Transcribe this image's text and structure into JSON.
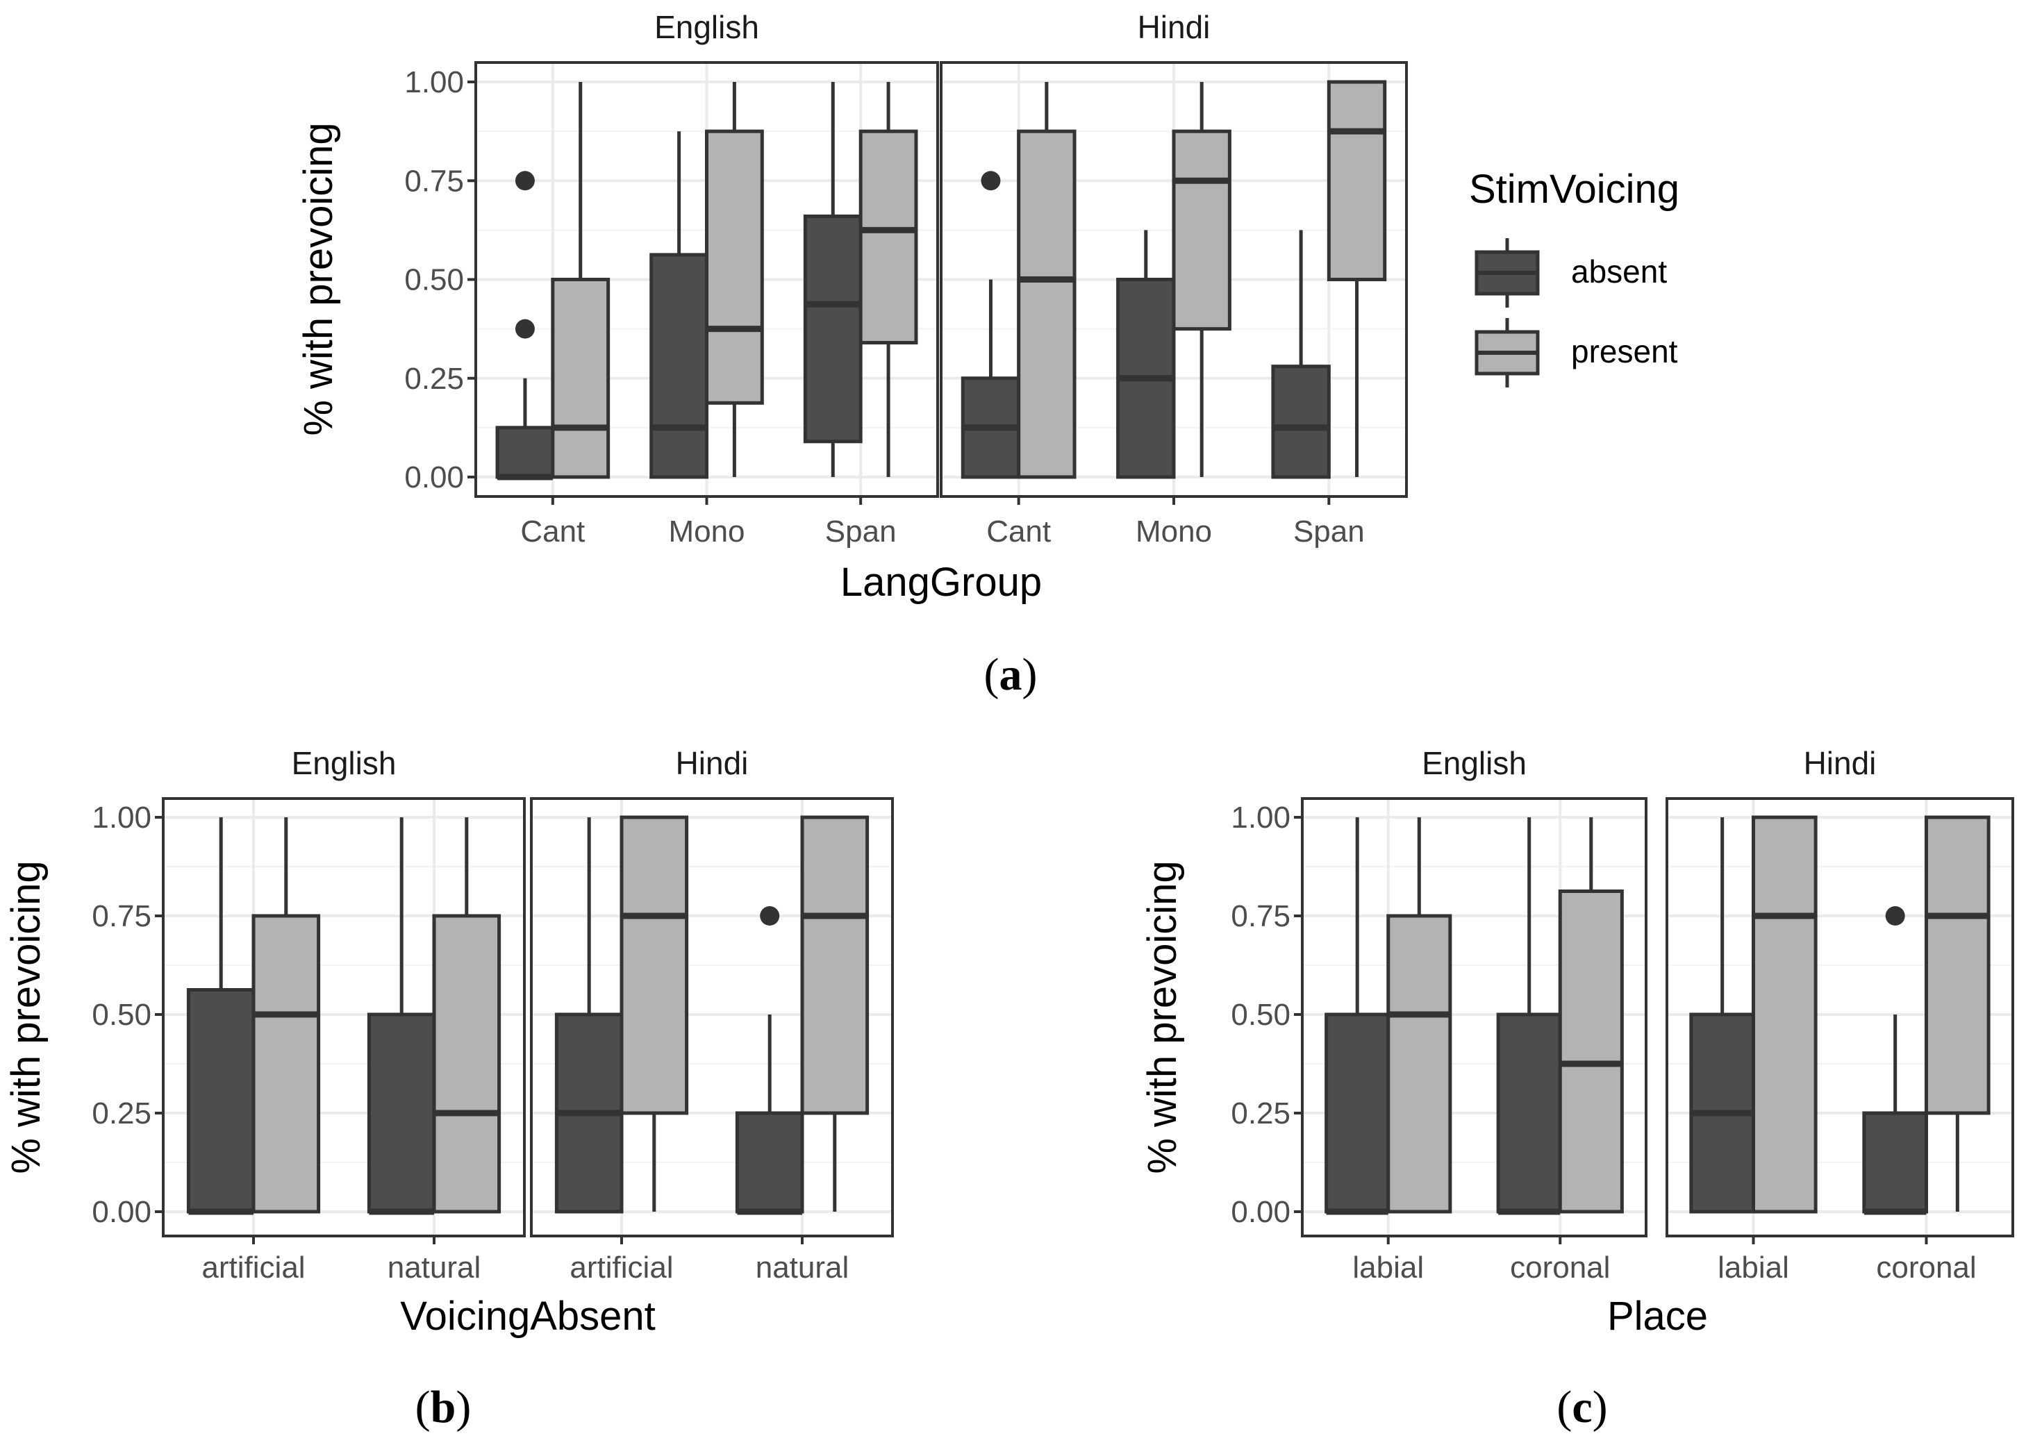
{
  "figure": {
    "captions": [
      "(a)",
      "(b)",
      "(c)"
    ],
    "caption_letters": [
      "a",
      "b",
      "c"
    ]
  },
  "legend": {
    "title": "StimVoicing",
    "entries": [
      {
        "label": "absent",
        "fill": "#4d4d4d"
      },
      {
        "label": "present",
        "fill": "#b3b3b3"
      }
    ]
  },
  "colors": {
    "absent_fill": "#4d4d4d",
    "present_fill": "#b3b3b3",
    "box_stroke": "#333333",
    "panel_border": "#333333",
    "grid_major": "#ebebeb",
    "grid_minor": "#f2f2f2"
  },
  "chart_data": [
    {
      "id": "a",
      "type": "boxplot",
      "caption": "(a)",
      "ylabel": "% with prevoicing",
      "xlabel": "LangGroup",
      "ylim": [
        0,
        1
      ],
      "yticks": [
        "0.00",
        "0.25",
        "0.50",
        "0.75",
        "1.00"
      ],
      "facets": [
        {
          "title": "English",
          "categories": [
            "Cant",
            "Mono",
            "Span"
          ],
          "groups": [
            {
              "category": "Cant",
              "series": "absent",
              "lower_whisker": 0,
              "q1": 0,
              "median": 0,
              "q3": 0.125,
              "upper_whisker": 0.25,
              "outliers": [
                0.375,
                0.75
              ]
            },
            {
              "category": "Cant",
              "series": "present",
              "lower_whisker": 0,
              "q1": 0,
              "median": 0.125,
              "q3": 0.5,
              "upper_whisker": 1.0,
              "outliers": []
            },
            {
              "category": "Mono",
              "series": "absent",
              "lower_whisker": 0,
              "q1": 0,
              "median": 0.125,
              "q3": 0.5625,
              "upper_whisker": 0.875,
              "outliers": []
            },
            {
              "category": "Mono",
              "series": "present",
              "lower_whisker": 0,
              "q1": 0.1875,
              "median": 0.375,
              "q3": 0.875,
              "upper_whisker": 1.0,
              "outliers": []
            },
            {
              "category": "Span",
              "series": "absent",
              "lower_whisker": 0,
              "q1": 0.09,
              "median": 0.4375,
              "q3": 0.66,
              "upper_whisker": 1.0,
              "outliers": []
            },
            {
              "category": "Span",
              "series": "present",
              "lower_whisker": 0,
              "q1": 0.34,
              "median": 0.625,
              "q3": 0.875,
              "upper_whisker": 1.0,
              "outliers": []
            }
          ]
        },
        {
          "title": "Hindi",
          "categories": [
            "Cant",
            "Mono",
            "Span"
          ],
          "groups": [
            {
              "category": "Cant",
              "series": "absent",
              "lower_whisker": 0,
              "q1": 0,
              "median": 0.125,
              "q3": 0.25,
              "upper_whisker": 0.5,
              "outliers": [
                0.75
              ]
            },
            {
              "category": "Cant",
              "series": "present",
              "lower_whisker": 0,
              "q1": 0,
              "median": 0.5,
              "q3": 0.875,
              "upper_whisker": 1.0,
              "outliers": []
            },
            {
              "category": "Mono",
              "series": "absent",
              "lower_whisker": 0,
              "q1": 0,
              "median": 0.25,
              "q3": 0.5,
              "upper_whisker": 0.625,
              "outliers": []
            },
            {
              "category": "Mono",
              "series": "present",
              "lower_whisker": 0,
              "q1": 0.375,
              "median": 0.75,
              "q3": 0.875,
              "upper_whisker": 1.0,
              "outliers": []
            },
            {
              "category": "Span",
              "series": "absent",
              "lower_whisker": 0,
              "q1": 0,
              "median": 0.125,
              "q3": 0.28,
              "upper_whisker": 0.625,
              "outliers": []
            },
            {
              "category": "Span",
              "series": "present",
              "lower_whisker": 0,
              "q1": 0.5,
              "median": 0.875,
              "q3": 1.0,
              "upper_whisker": 1.0,
              "outliers": []
            }
          ]
        }
      ]
    },
    {
      "id": "b",
      "type": "boxplot",
      "caption": "(b)",
      "ylabel": "% with prevoicing",
      "xlabel": "VoicingAbsent",
      "ylim": [
        0,
        1
      ],
      "yticks": [
        "0.00",
        "0.25",
        "0.50",
        "0.75",
        "1.00"
      ],
      "facets": [
        {
          "title": "English",
          "categories": [
            "artificial",
            "natural"
          ],
          "groups": [
            {
              "category": "artificial",
              "series": "absent",
              "lower_whisker": 0,
              "q1": 0,
              "median": 0,
              "q3": 0.5625,
              "upper_whisker": 1.0,
              "outliers": []
            },
            {
              "category": "artificial",
              "series": "present",
              "lower_whisker": 0,
              "q1": 0,
              "median": 0.5,
              "q3": 0.75,
              "upper_whisker": 1.0,
              "outliers": []
            },
            {
              "category": "natural",
              "series": "absent",
              "lower_whisker": 0,
              "q1": 0,
              "median": 0,
              "q3": 0.5,
              "upper_whisker": 1.0,
              "outliers": []
            },
            {
              "category": "natural",
              "series": "present",
              "lower_whisker": 0,
              "q1": 0,
              "median": 0.25,
              "q3": 0.75,
              "upper_whisker": 1.0,
              "outliers": []
            }
          ]
        },
        {
          "title": "Hindi",
          "categories": [
            "artificial",
            "natural"
          ],
          "groups": [
            {
              "category": "artificial",
              "series": "absent",
              "lower_whisker": 0,
              "q1": 0,
              "median": 0.25,
              "q3": 0.5,
              "upper_whisker": 1.0,
              "outliers": []
            },
            {
              "category": "artificial",
              "series": "present",
              "lower_whisker": 0,
              "q1": 0.25,
              "median": 0.75,
              "q3": 1.0,
              "upper_whisker": 1.0,
              "outliers": []
            },
            {
              "category": "natural",
              "series": "absent",
              "lower_whisker": 0,
              "q1": 0,
              "median": 0,
              "q3": 0.25,
              "upper_whisker": 0.5,
              "outliers": [
                0.75
              ]
            },
            {
              "category": "natural",
              "series": "present",
              "lower_whisker": 0,
              "q1": 0.25,
              "median": 0.75,
              "q3": 1.0,
              "upper_whisker": 1.0,
              "outliers": []
            }
          ]
        }
      ]
    },
    {
      "id": "c",
      "type": "boxplot",
      "caption": "(c)",
      "ylabel": "% with prevoicing",
      "xlabel": "Place",
      "ylim": [
        0,
        1
      ],
      "yticks": [
        "0.00",
        "0.25",
        "0.50",
        "0.75",
        "1.00"
      ],
      "facets": [
        {
          "title": "English",
          "categories": [
            "labial",
            "coronal"
          ],
          "groups": [
            {
              "category": "labial",
              "series": "absent",
              "lower_whisker": 0,
              "q1": 0,
              "median": 0,
              "q3": 0.5,
              "upper_whisker": 1.0,
              "outliers": []
            },
            {
              "category": "labial",
              "series": "present",
              "lower_whisker": 0,
              "q1": 0,
              "median": 0.5,
              "q3": 0.75,
              "upper_whisker": 1.0,
              "outliers": []
            },
            {
              "category": "coronal",
              "series": "absent",
              "lower_whisker": 0,
              "q1": 0,
              "median": 0,
              "q3": 0.5,
              "upper_whisker": 1.0,
              "outliers": []
            },
            {
              "category": "coronal",
              "series": "present",
              "lower_whisker": 0,
              "q1": 0,
              "median": 0.375,
              "q3": 0.8125,
              "upper_whisker": 1.0,
              "outliers": []
            }
          ]
        },
        {
          "title": "Hindi",
          "categories": [
            "labial",
            "coronal"
          ],
          "groups": [
            {
              "category": "labial",
              "series": "absent",
              "lower_whisker": 0,
              "q1": 0,
              "median": 0.25,
              "q3": 0.5,
              "upper_whisker": 1.0,
              "outliers": []
            },
            {
              "category": "labial",
              "series": "present",
              "lower_whisker": 0,
              "q1": 0,
              "median": 0.75,
              "q3": 1.0,
              "upper_whisker": 1.0,
              "outliers": []
            },
            {
              "category": "coronal",
              "series": "absent",
              "lower_whisker": 0,
              "q1": 0,
              "median": 0,
              "q3": 0.25,
              "upper_whisker": 0.5,
              "outliers": [
                0.75
              ]
            },
            {
              "category": "coronal",
              "series": "present",
              "lower_whisker": 0,
              "q1": 0.25,
              "median": 0.75,
              "q3": 1.0,
              "upper_whisker": 1.0,
              "outliers": []
            }
          ]
        }
      ]
    }
  ]
}
